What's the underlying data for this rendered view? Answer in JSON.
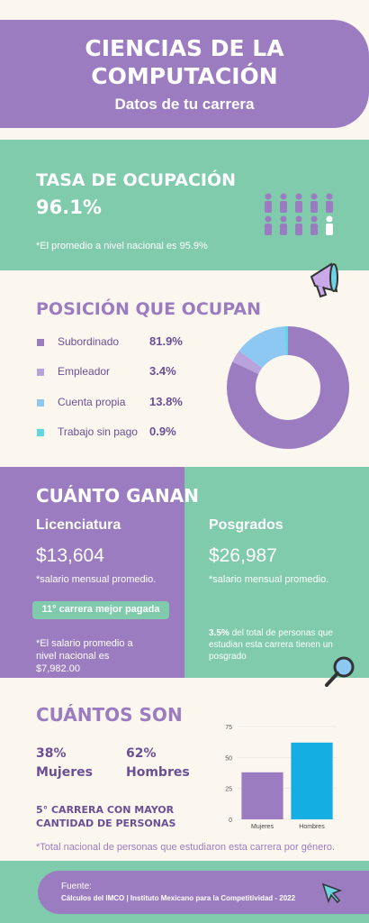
{
  "header": {
    "title": "CIENCIAS DE LA COMPUTACIÓN",
    "subtitle": "Datos de tu carrera"
  },
  "occupation": {
    "title": "TASA DE OCUPACIÓN",
    "value": "96.1%",
    "note": "*El promedio a nivel nacional es 95.9%"
  },
  "position": {
    "chart_data": {
      "type": "pie",
      "title": "POSICIÓN QUE OCUPAN",
      "categories": [
        "Subordinado",
        "Empleador",
        "Cuenta propia",
        "Trabajo sin pago"
      ],
      "values": [
        81.9,
        3.4,
        13.8,
        0.9
      ],
      "value_labels": [
        "81.9%",
        "3.4%",
        "13.8%",
        "0.9%"
      ],
      "colors": [
        "#9b7cc0",
        "#b9a3dc",
        "#8cc8f2",
        "#5fd6e2"
      ],
      "donut": true
    }
  },
  "earnings": {
    "title": "CUÁNTO GANAN",
    "bachelor": {
      "label": "Licenciatura",
      "salary": "$13,604",
      "note": "*salario mensual promedio.",
      "rank": "11° carrera mejor pagada",
      "national": "*El salario promedio a nivel nacional es $7,982.00"
    },
    "postgrad": {
      "label": "Posgrados",
      "salary": "$26,987",
      "note": "*salario mensual promedio.",
      "share": "3.5%",
      "share_text": "del total de personas que estudian esta carrera tienen un posgrado"
    }
  },
  "count": {
    "title": "CUÁNTOS SON",
    "women": {
      "share": "38%",
      "label": "Mujeres"
    },
    "men": {
      "share": "62%",
      "label": "Hombres"
    },
    "rank": "5° CARRERA CON MAYOR CANTIDAD DE PERSONAS",
    "note": "*Total nacional de personas que estudiaron esta carrera por género.",
    "chart_data": {
      "type": "bar",
      "categories": [
        "Mujeres",
        "Hombres"
      ],
      "values": [
        38,
        62
      ],
      "colors": [
        "#9b7cc0",
        "#14aee2"
      ],
      "ylim": [
        0,
        75
      ],
      "yticks": [
        0,
        25,
        50,
        75
      ],
      "grid": true
    }
  },
  "source": {
    "label": "Fuente:",
    "text": "Cálculos del IMCO | Instituto Mexicano para la Competitividad - 2022"
  }
}
